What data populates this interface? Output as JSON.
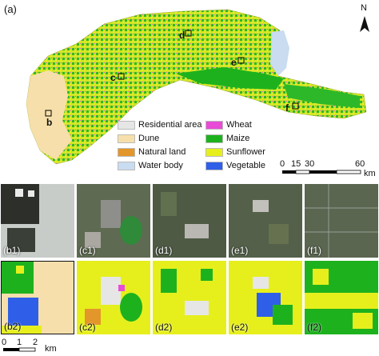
{
  "panel_a": {
    "tag": "(a)",
    "north": "N",
    "sites": [
      "b",
      "c",
      "d",
      "e",
      "f"
    ],
    "legend": [
      {
        "label": "Residential area",
        "color": "#e6e6e6"
      },
      {
        "label": "Dune",
        "color": "#f6dfaa"
      },
      {
        "label": "Natural land",
        "color": "#e3962a"
      },
      {
        "label": "Water body",
        "color": "#c9dcf0"
      },
      {
        "label": "Wheat",
        "color": "#e84bd6"
      },
      {
        "label": "Maize",
        "color": "#1db21d"
      },
      {
        "label": "Sunflower",
        "color": "#e6ef1c"
      },
      {
        "label": "Vegetable",
        "color": "#2f5fe8"
      }
    ],
    "scale": {
      "ticks": [
        "0",
        "15",
        "30",
        "60"
      ],
      "unit": "km"
    }
  },
  "tiles_top": [
    "(b1)",
    "(c1)",
    "(d1)",
    "(e1)",
    "(f1)"
  ],
  "tiles_bottom": [
    "(b2)",
    "(c2)",
    "(d2)",
    "(e2)",
    "(f2)"
  ],
  "bottom_scale": {
    "ticks": [
      "0",
      "1",
      "2"
    ],
    "unit": "km"
  }
}
